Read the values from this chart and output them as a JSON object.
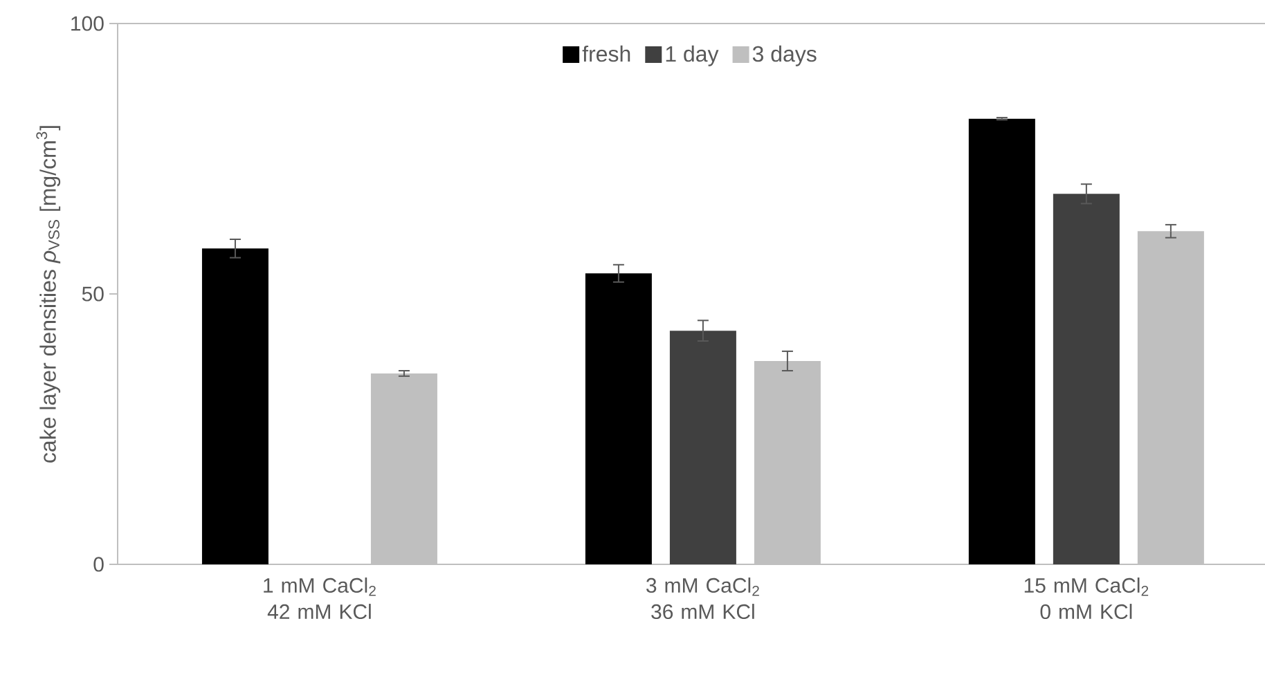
{
  "chart_data": {
    "type": "bar",
    "ylabel": "cake layer densities *ρ*$_{VSS}$  [mg/cm$^{3}$]",
    "categories": [
      "1 mM CaCl$_{2}$ 42 mM KCl",
      "3 mM CaCl$_{2}$ 36 mM KCl",
      "15 mM CaCl$_{2}$ 0 mM KCl"
    ],
    "series": [
      {
        "name": "fresh",
        "color": "#000000",
        "values": [
          58.4,
          53.8,
          82.4
        ],
        "errors": [
          1.7,
          1.6,
          0.2
        ]
      },
      {
        "name": "1 day",
        "color": "#404040",
        "values": [
          null,
          43.2,
          68.5
        ],
        "errors": [
          null,
          1.9,
          1.8
        ]
      },
      {
        "name": "3 days",
        "color": "#bfbfbf",
        "values": [
          35.3,
          37.6,
          61.6
        ],
        "errors": [
          0.5,
          1.8,
          1.2
        ]
      }
    ],
    "ylim": [
      0,
      100
    ],
    "yticks": [
      0,
      50,
      100
    ],
    "grid": false,
    "legend": "top"
  }
}
